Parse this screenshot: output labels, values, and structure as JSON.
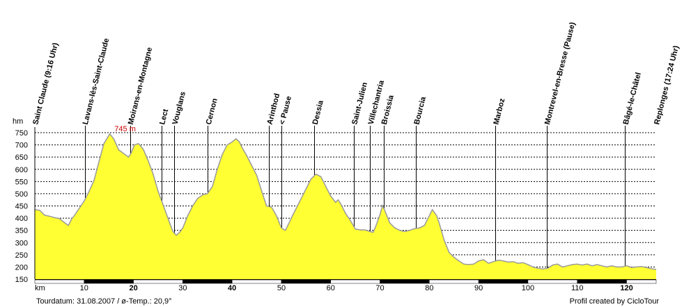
{
  "chart_data": {
    "type": "area",
    "y_unit": "hm",
    "x_unit": "km",
    "ylim": [
      150,
      750
    ],
    "xlim": [
      0,
      126
    ],
    "y_ticks": [
      150,
      200,
      250,
      300,
      350,
      400,
      450,
      500,
      550,
      600,
      650,
      700,
      750
    ],
    "x_ticks": [
      10,
      20,
      30,
      40,
      50,
      60,
      70,
      80,
      90,
      100,
      110,
      120
    ],
    "bold_x_ticks": [
      20,
      40,
      120
    ],
    "grid": true,
    "max_label": "745 m",
    "max_point": {
      "x": 15.2,
      "y": 745
    },
    "fill_color": "#ffff33",
    "line_color": "#9a9a9a",
    "profile": [
      [
        0,
        435
      ],
      [
        1,
        432
      ],
      [
        2,
        412
      ],
      [
        3,
        408
      ],
      [
        4,
        402
      ],
      [
        5,
        398
      ],
      [
        6,
        382
      ],
      [
        6.8,
        370
      ],
      [
        7.5,
        398
      ],
      [
        8,
        410
      ],
      [
        9,
        440
      ],
      [
        10,
        470
      ],
      [
        11,
        510
      ],
      [
        12,
        555
      ],
      [
        13,
        630
      ],
      [
        14,
        705
      ],
      [
        15.2,
        745
      ],
      [
        16,
        725
      ],
      [
        17,
        680
      ],
      [
        18,
        665
      ],
      [
        19,
        650
      ],
      [
        19.5,
        665
      ],
      [
        20.2,
        700
      ],
      [
        21,
        705
      ],
      [
        22,
        682
      ],
      [
        23,
        635
      ],
      [
        24,
        580
      ],
      [
        25,
        510
      ],
      [
        26,
        455
      ],
      [
        27,
        400
      ],
      [
        28,
        345
      ],
      [
        28.7,
        330
      ],
      [
        29.5,
        345
      ],
      [
        30,
        360
      ],
      [
        31,
        410
      ],
      [
        32,
        450
      ],
      [
        33,
        480
      ],
      [
        34,
        495
      ],
      [
        35,
        500
      ],
      [
        36,
        530
      ],
      [
        37,
        600
      ],
      [
        38,
        660
      ],
      [
        39,
        700
      ],
      [
        40,
        712
      ],
      [
        40.8,
        725
      ],
      [
        41.5,
        712
      ],
      [
        42,
        690
      ],
      [
        43,
        655
      ],
      [
        44,
        615
      ],
      [
        45,
        575
      ],
      [
        46,
        510
      ],
      [
        47,
        450
      ],
      [
        48,
        445
      ],
      [
        49,
        410
      ],
      [
        50,
        360
      ],
      [
        50.8,
        350
      ],
      [
        51.5,
        378
      ],
      [
        52,
        400
      ],
      [
        53,
        440
      ],
      [
        54,
        480
      ],
      [
        55,
        520
      ],
      [
        56,
        560
      ],
      [
        57,
        580
      ],
      [
        58,
        570
      ],
      [
        59,
        530
      ],
      [
        60,
        490
      ],
      [
        61,
        465
      ],
      [
        61.5,
        475
      ],
      [
        62,
        460
      ],
      [
        63,
        420
      ],
      [
        64,
        390
      ],
      [
        65,
        355
      ],
      [
        66,
        352
      ],
      [
        67,
        352
      ],
      [
        68,
        345
      ],
      [
        68.6,
        342
      ],
      [
        69.2,
        370
      ],
      [
        70,
        415
      ],
      [
        70.5,
        452
      ],
      [
        71,
        430
      ],
      [
        72,
        380
      ],
      [
        73,
        360
      ],
      [
        74,
        350
      ],
      [
        75,
        345
      ],
      [
        76,
        350
      ],
      [
        77,
        357
      ],
      [
        78,
        360
      ],
      [
        79,
        370
      ],
      [
        80,
        410
      ],
      [
        80.6,
        435
      ],
      [
        81.5,
        410
      ],
      [
        82,
        380
      ],
      [
        83,
        310
      ],
      [
        84,
        260
      ],
      [
        85,
        240
      ],
      [
        86,
        225
      ],
      [
        87,
        212
      ],
      [
        88,
        210
      ],
      [
        89,
        212
      ],
      [
        90,
        225
      ],
      [
        91,
        230
      ],
      [
        92,
        215
      ],
      [
        93,
        222
      ],
      [
        94,
        228
      ],
      [
        95,
        225
      ],
      [
        96,
        220
      ],
      [
        97,
        222
      ],
      [
        98,
        215
      ],
      [
        99,
        218
      ],
      [
        100,
        210
      ],
      [
        101,
        200
      ],
      [
        102,
        195
      ],
      [
        103,
        192
      ],
      [
        104,
        195
      ],
      [
        105,
        208
      ],
      [
        106,
        212
      ],
      [
        107,
        200
      ],
      [
        108,
        205
      ],
      [
        109,
        210
      ],
      [
        110,
        212
      ],
      [
        111,
        208
      ],
      [
        112,
        212
      ],
      [
        113,
        205
      ],
      [
        114,
        210
      ],
      [
        115,
        205
      ],
      [
        116,
        200
      ],
      [
        117,
        205
      ],
      [
        118,
        200
      ],
      [
        119,
        200
      ],
      [
        120,
        205
      ],
      [
        121,
        198
      ],
      [
        122,
        200
      ],
      [
        123,
        202
      ],
      [
        124,
        198
      ],
      [
        125,
        193
      ],
      [
        126,
        190
      ]
    ],
    "waypoints": [
      {
        "km": 0,
        "name": "Saint Claude (9:16 Uhr)",
        "line": false
      },
      {
        "km": 10.1,
        "name": "Lavans-lès-Saint-Claude",
        "line": true
      },
      {
        "km": 19.3,
        "name": "Moirans-en-Montagne",
        "line": true
      },
      {
        "km": 25.7,
        "name": "Lect",
        "line": true
      },
      {
        "km": 28.3,
        "name": "Vouglans",
        "line": true
      },
      {
        "km": 35.1,
        "name": "Cernon",
        "line": true
      },
      {
        "km": 47.5,
        "name": "Arinthod",
        "line": true
      },
      {
        "km": 50.0,
        "name": "< Pause",
        "line": true
      },
      {
        "km": 56.7,
        "name": "Dessia",
        "line": true
      },
      {
        "km": 64.7,
        "name": "Saint-Julien",
        "line": true
      },
      {
        "km": 68.0,
        "name": "Villechantria",
        "line": true
      },
      {
        "km": 70.7,
        "name": "Broissia",
        "line": true
      },
      {
        "km": 77.3,
        "name": "Bourcia",
        "line": true
      },
      {
        "km": 93.4,
        "name": "Marboz",
        "line": true
      },
      {
        "km": 103.8,
        "name": "Montrevel-en-Bresse (Pause)",
        "line": true
      },
      {
        "km": 119.7,
        "name": "Bâgé-le-Châtel",
        "line": true
      },
      {
        "km": 126,
        "name": "Replonges (17:24 Uhr)",
        "line": false
      }
    ]
  },
  "footer": {
    "left": "Tourdatum: 31.08.2007  /  ø-Temp.: 20,9°",
    "right": "Profil created by CicloTour"
  }
}
